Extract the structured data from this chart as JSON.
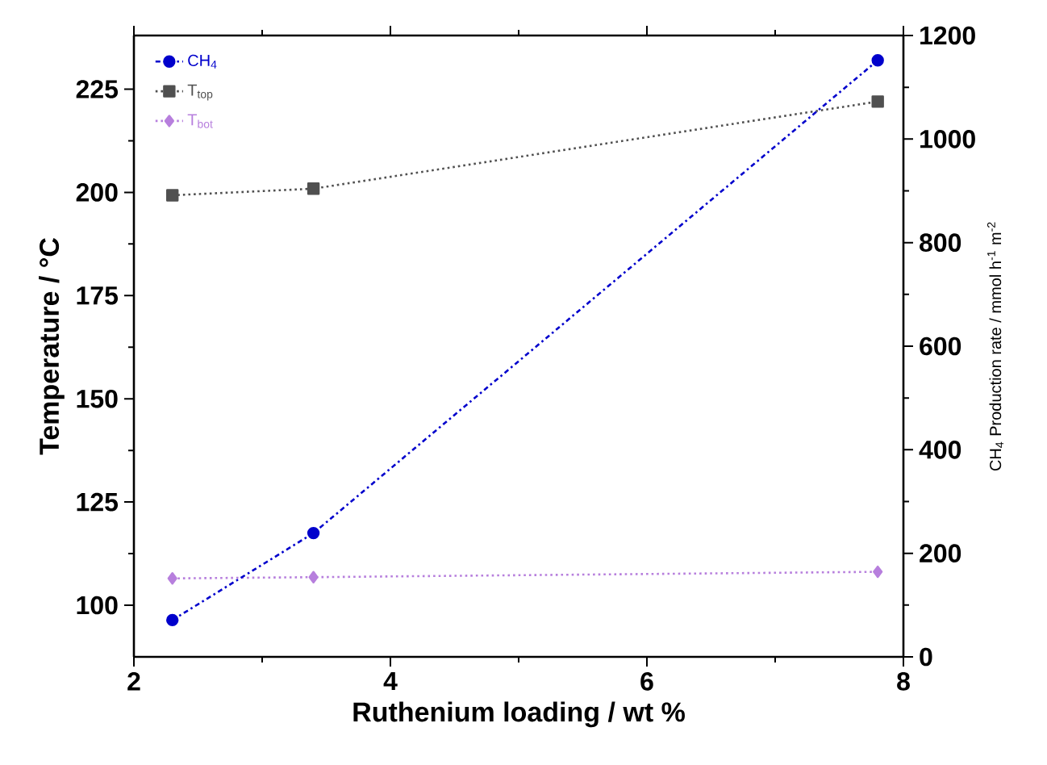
{
  "chart_data": {
    "type": "line",
    "xlabel": "Ruthenium loading / wt %",
    "ylabel": "Temperature / °C",
    "y2label": "CH$_{4}$ Production rate / mmol h$^{-1}$ m$^{-2}$",
    "x": [
      2.3,
      3.4,
      7.8
    ],
    "xlim": [
      2,
      8
    ],
    "xticks": [
      2,
      4,
      6,
      8
    ],
    "ylim": [
      87.5,
      238
    ],
    "yticks": [
      100,
      125,
      150,
      175,
      200,
      225
    ],
    "y2lim": [
      0,
      1200
    ],
    "y2ticks": [
      0,
      200,
      400,
      600,
      800,
      1000,
      1200
    ],
    "legend": "top left",
    "grid": false,
    "series": [
      {
        "name": "CH$_{4}$",
        "color": "#0000cc",
        "values": [
          71,
          239,
          1152
        ],
        "axis": "y2",
        "marker": "circle",
        "line_style": "dashdot"
      },
      {
        "name": "T$_{top}$",
        "color": "#505050",
        "values": [
          199.3,
          200.9,
          222
        ],
        "marker": "square",
        "line_style": "dotted"
      },
      {
        "name": "T$_{bot}$",
        "color": "#b77fdd",
        "values": [
          106.5,
          106.8,
          108.1
        ],
        "marker": "diamond",
        "line_style": "dotted"
      }
    ]
  }
}
